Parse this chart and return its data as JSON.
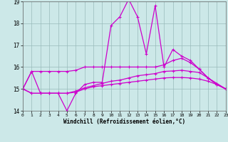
{
  "xlabel": "Windchill (Refroidissement éolien,°C)",
  "xlim": [
    0,
    23
  ],
  "ylim": [
    14,
    19
  ],
  "yticks": [
    14,
    15,
    16,
    17,
    18,
    19
  ],
  "xticks": [
    0,
    1,
    2,
    3,
    4,
    5,
    6,
    7,
    8,
    9,
    10,
    11,
    12,
    13,
    14,
    15,
    16,
    17,
    18,
    19,
    20,
    21,
    22,
    23
  ],
  "background_color": "#cce8e8",
  "grid_color": "#99bbbb",
  "line_color": "#cc00cc",
  "line1_y": [
    15.0,
    15.8,
    14.8,
    14.8,
    14.8,
    14.0,
    14.8,
    15.2,
    15.3,
    15.3,
    17.9,
    18.3,
    19.1,
    18.3,
    16.6,
    18.8,
    16.0,
    16.8,
    16.5,
    16.3,
    15.9,
    15.5,
    15.2,
    15.0
  ],
  "line2_y": [
    15.0,
    15.8,
    15.8,
    15.8,
    15.8,
    15.8,
    15.85,
    16.0,
    16.0,
    16.0,
    16.0,
    16.0,
    16.0,
    16.0,
    16.0,
    16.0,
    16.1,
    16.3,
    16.4,
    16.2,
    15.9,
    15.5,
    15.2,
    15.0
  ],
  "line3_y": [
    15.0,
    14.8,
    14.8,
    14.8,
    14.8,
    14.8,
    14.85,
    15.0,
    15.1,
    15.15,
    15.2,
    15.25,
    15.3,
    15.35,
    15.4,
    15.45,
    15.5,
    15.52,
    15.52,
    15.5,
    15.45,
    15.35,
    15.2,
    15.0
  ],
  "line4_y": [
    15.0,
    14.8,
    14.8,
    14.8,
    14.8,
    14.8,
    14.9,
    15.05,
    15.15,
    15.25,
    15.35,
    15.4,
    15.5,
    15.6,
    15.65,
    15.7,
    15.8,
    15.82,
    15.85,
    15.8,
    15.75,
    15.5,
    15.25,
    15.0
  ]
}
